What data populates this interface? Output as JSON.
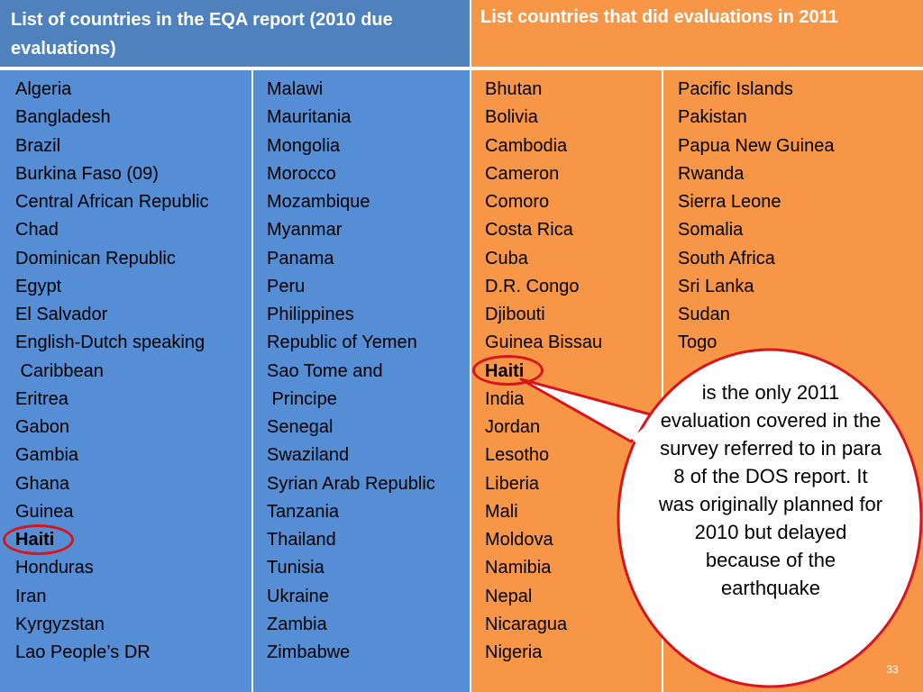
{
  "header": {
    "left_title": "List of countries in the EQA report (2010 due evaluations)",
    "right_title": "List countries that did evaluations in 2011"
  },
  "columns": [
    {
      "items": [
        {
          "text": "Algeria"
        },
        {
          "text": "Bangladesh"
        },
        {
          "text": "Brazil"
        },
        {
          "text": "Burkina Faso (09)"
        },
        {
          "text": "Central African Republic"
        },
        {
          "text": "Chad"
        },
        {
          "text": "Dominican Republic"
        },
        {
          "text": "Egypt"
        },
        {
          "text": "El Salvador"
        },
        {
          "text": "English-Dutch speaking"
        },
        {
          "text": " Caribbean"
        },
        {
          "text": "Eritrea"
        },
        {
          "text": "Gabon"
        },
        {
          "text": "Gambia"
        },
        {
          "text": "Ghana"
        },
        {
          "text": "Guinea"
        },
        {
          "text": "Haiti",
          "bold": true,
          "circled": true
        },
        {
          "text": "Honduras"
        },
        {
          "text": "Iran"
        },
        {
          "text": "Kyrgyzstan"
        },
        {
          "text": "Lao People’s DR"
        }
      ]
    },
    {
      "items": [
        {
          "text": "Malawi"
        },
        {
          "text": "Mauritania"
        },
        {
          "text": "Mongolia"
        },
        {
          "text": "Morocco"
        },
        {
          "text": "Mozambique"
        },
        {
          "text": "Myanmar"
        },
        {
          "text": "Panama"
        },
        {
          "text": "Peru"
        },
        {
          "text": "Philippines"
        },
        {
          "text": "Republic of Yemen"
        },
        {
          "text": "Sao Tome and"
        },
        {
          "text": " Principe"
        },
        {
          "text": "Senegal"
        },
        {
          "text": "Swaziland"
        },
        {
          "text": "Syrian Arab Republic"
        },
        {
          "text": "Tanzania"
        },
        {
          "text": "Thailand"
        },
        {
          "text": "Tunisia"
        },
        {
          "text": "Ukraine"
        },
        {
          "text": "Zambia"
        },
        {
          "text": "Zimbabwe"
        }
      ]
    },
    {
      "items": [
        {
          "text": "Bhutan"
        },
        {
          "text": "Bolivia"
        },
        {
          "text": "Cambodia"
        },
        {
          "text": "Cameron"
        },
        {
          "text": "Comoro"
        },
        {
          "text": "Costa Rica"
        },
        {
          "text": "Cuba"
        },
        {
          "text": "D.R. Congo"
        },
        {
          "text": "Djibouti"
        },
        {
          "text": "Guinea Bissau"
        },
        {
          "text": "Haiti",
          "bold": true,
          "circled": true
        },
        {
          "text": "India"
        },
        {
          "text": "Jordan"
        },
        {
          "text": "Lesotho"
        },
        {
          "text": "Liberia"
        },
        {
          "text": "Mali"
        },
        {
          "text": "Moldova"
        },
        {
          "text": "Namibia"
        },
        {
          "text": "Nepal"
        },
        {
          "text": "Nicaragua"
        },
        {
          "text": "Nigeria"
        }
      ]
    },
    {
      "items": [
        {
          "text": "Pacific Islands"
        },
        {
          "text": "Pakistan"
        },
        {
          "text": "Papua New Guinea"
        },
        {
          "text": "Rwanda"
        },
        {
          "text": "Sierra Leone"
        },
        {
          "text": "Somalia"
        },
        {
          "text": "South Africa"
        },
        {
          "text": "Sri Lanka"
        },
        {
          "text": "Sudan"
        },
        {
          "text": "Togo"
        }
      ]
    }
  ],
  "callout": {
    "text": "is the only 2011 evaluation covered in the survey referred to in para 8 of the DOS report. It was originally planned for 2010 but delayed because of the earthquake"
  },
  "page_number": "33",
  "colors": {
    "blue_header": "#4f81bd",
    "blue_body": "#558ed5",
    "orange": "#f79646",
    "highlight_ring": "#d8141c"
  }
}
